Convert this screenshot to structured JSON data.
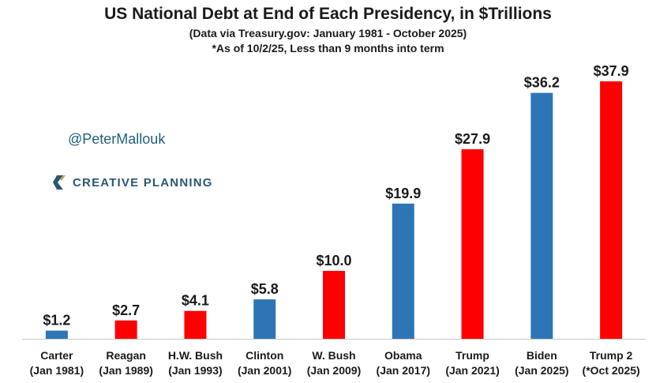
{
  "header": {
    "title": "US National Debt at End of Each Presidency, in $Trillions",
    "subtitle_1": "(Data via Treasury.gov: January 1981 - October 2025)",
    "subtitle_2": "*As of 10/2/25, Less than 9 months into term"
  },
  "branding": {
    "handle": "@PeterMallouk",
    "logo_text": "CREATIVE PLANNING",
    "logo_color": "#2a5873"
  },
  "colors": {
    "blue": "#2e75b6",
    "red": "#ff0000"
  },
  "chart_data": {
    "type": "bar",
    "title": "US National Debt at End of Each Presidency, in $Trillions",
    "xlabel": "",
    "ylabel": "",
    "ylim": [
      0,
      40
    ],
    "categories": [
      {
        "name": "Carter",
        "date": "(Jan 1981)"
      },
      {
        "name": "Reagan",
        "date": "(Jan 1989)"
      },
      {
        "name": "H.W. Bush",
        "date": "(Jan 1993)"
      },
      {
        "name": "Clinton",
        "date": "(Jan 2001)"
      },
      {
        "name": "W. Bush",
        "date": "(Jan 2009)"
      },
      {
        "name": "Obama",
        "date": "(Jan 2017)"
      },
      {
        "name": "Trump",
        "date": "(Jan 2021)"
      },
      {
        "name": "Biden",
        "date": "(Jan 2025)"
      },
      {
        "name": "Trump 2",
        "date": "(*Oct 2025)"
      }
    ],
    "values": [
      1.2,
      2.7,
      4.1,
      5.8,
      10.0,
      19.9,
      27.9,
      36.2,
      37.9
    ],
    "labels": [
      "$1.2",
      "$2.7",
      "$4.1",
      "$5.8",
      "$10.0",
      "$19.9",
      "$27.9",
      "$36.2",
      "$37.9"
    ],
    "bar_colors": [
      "blue",
      "red",
      "red",
      "blue",
      "red",
      "blue",
      "red",
      "blue",
      "red"
    ]
  }
}
